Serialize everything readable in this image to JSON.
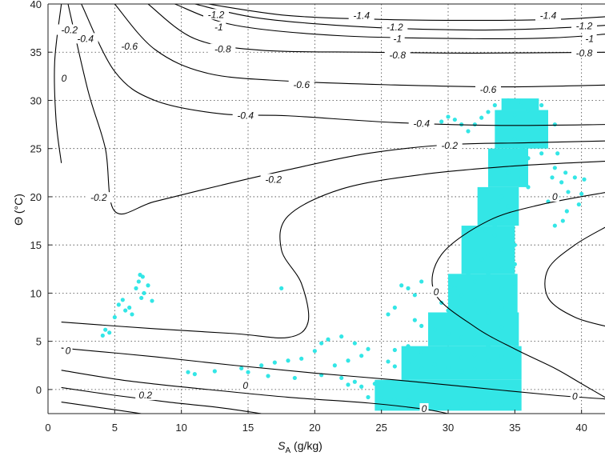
{
  "chart_data": {
    "type": "scatter",
    "title": "",
    "xlabel": "S",
    "xlabel_sub": "A",
    "xlabel_unit": " (g/kg)",
    "ylabel": "Θ (°C)",
    "xlim": [
      0,
      42
    ],
    "ylim": [
      -2.5,
      40
    ],
    "xticks": [
      0,
      5,
      10,
      15,
      20,
      25,
      30,
      35,
      40
    ],
    "yticks": [
      0,
      5,
      10,
      15,
      20,
      25,
      30,
      35,
      40
    ],
    "xtick_labels": [
      "0",
      "5",
      "10",
      "15",
      "20",
      "25",
      "30",
      "35",
      "40"
    ],
    "ytick_labels": [
      "0",
      "5",
      "10",
      "15",
      "20",
      "25",
      "30",
      "35",
      "40"
    ],
    "grid": true,
    "grid_style": "dotted",
    "scatter_color": "#33e6e6",
    "contour_color": "#000000",
    "contour_lines": [
      {
        "level": -1.4,
        "points": [
          [
            12,
            40.0
          ],
          [
            18,
            38.8
          ],
          [
            25,
            38.4
          ],
          [
            32,
            38.3
          ],
          [
            38,
            38.4
          ],
          [
            42,
            38.7
          ]
        ]
      },
      {
        "level": -1.2,
        "points": [
          [
            11,
            40.0
          ],
          [
            16,
            38.5
          ],
          [
            24,
            37.6
          ],
          [
            32,
            37.3
          ],
          [
            38,
            37.5
          ],
          [
            42,
            37.8
          ]
        ]
      },
      {
        "level": -1,
        "points": [
          [
            9.5,
            40.0
          ],
          [
            14,
            37.8
          ],
          [
            22,
            36.7
          ],
          [
            32,
            36.4
          ],
          [
            38,
            36.5
          ],
          [
            42,
            36.9
          ]
        ]
      },
      {
        "level": -0.8,
        "points": [
          [
            7.5,
            40.0
          ],
          [
            11,
            36.4
          ],
          [
            16,
            35.2
          ],
          [
            24,
            35.0
          ],
          [
            32,
            34.9
          ],
          [
            42,
            35.0
          ]
        ]
      },
      {
        "level": -0.6,
        "points": [
          [
            5,
            40.0
          ],
          [
            8,
            35.3
          ],
          [
            12,
            32.8
          ],
          [
            18,
            32.0
          ],
          [
            26,
            31.6
          ],
          [
            34,
            31.4
          ],
          [
            42,
            31.6
          ]
        ]
      },
      {
        "level": -0.4,
        "points": [
          [
            2.5,
            40.0
          ],
          [
            5,
            33.0
          ],
          [
            8,
            30.0
          ],
          [
            13,
            28.6
          ],
          [
            18,
            28.4
          ],
          [
            26,
            27.7
          ],
          [
            34,
            27.4
          ],
          [
            42,
            27.5
          ]
        ]
      },
      {
        "level": -0.2,
        "points": [
          [
            1.5,
            40.0
          ],
          [
            3,
            31.0
          ],
          [
            4.3,
            25.0
          ],
          [
            5,
            18.5
          ],
          [
            8,
            19.5
          ],
          [
            13,
            21.2
          ],
          [
            18,
            22.8
          ],
          [
            24,
            24.5
          ],
          [
            30,
            25.4
          ],
          [
            36,
            25.6
          ],
          [
            42,
            25.8
          ]
        ]
      },
      {
        "level": 0,
        "points": [
          [
            1,
            40.0
          ],
          [
            0.5,
            34.0
          ],
          [
            0.6,
            28.0
          ],
          [
            1,
            23.5
          ]
        ]
      },
      {
        "level": 0,
        "points": [
          [
            1,
            7.0
          ],
          [
            8,
            6.3
          ],
          [
            14,
            5.8
          ],
          [
            18,
            5.4
          ],
          [
            19.5,
            7.0
          ],
          [
            19,
            11.0
          ],
          [
            17.5,
            14.5
          ],
          [
            18,
            18.0
          ],
          [
            22,
            20.8
          ],
          [
            28,
            22.3
          ],
          [
            35,
            23.2
          ],
          [
            42,
            23.7
          ]
        ]
      },
      {
        "level": 0,
        "points": [
          [
            42,
            20.5
          ],
          [
            37,
            19.2
          ],
          [
            33,
            17.5
          ],
          [
            29.5,
            14.0
          ],
          [
            29,
            10.0
          ],
          [
            32,
            6.5
          ],
          [
            35,
            4.2
          ],
          [
            38,
            2.2
          ],
          [
            40,
            0.6
          ],
          [
            42,
            -1.0
          ]
        ]
      },
      {
        "level": 0,
        "points": [
          [
            42,
            17.0
          ],
          [
            39.5,
            15.0
          ],
          [
            37.5,
            12.5
          ],
          [
            37.5,
            9.5
          ],
          [
            39.5,
            7.5
          ],
          [
            42,
            6.5
          ]
        ]
      },
      {
        "level": 0,
        "points": [
          [
            1,
            4.3
          ],
          [
            8,
            3.4
          ],
          [
            14,
            2.5
          ],
          [
            20,
            1.7
          ],
          [
            26,
            1.0
          ],
          [
            32,
            0.2
          ],
          [
            38,
            -0.6
          ],
          [
            42,
            -1.0
          ]
        ]
      },
      {
        "level": 0.2,
        "points": [
          [
            1,
            2.0
          ],
          [
            6,
            0.9
          ],
          [
            12,
            0.0
          ],
          [
            18,
            -0.8
          ],
          [
            24,
            -1.4
          ],
          [
            28,
            -2.0
          ],
          [
            30,
            -2.5
          ]
        ]
      },
      {
        "level": 0.4,
        "points": [
          [
            1,
            0.2
          ],
          [
            5,
            -0.6
          ],
          [
            9,
            -1.3
          ],
          [
            13,
            -1.9
          ],
          [
            16,
            -2.5
          ]
        ]
      },
      {
        "level": 0.6,
        "points": [
          [
            1,
            -1.3
          ],
          [
            4,
            -1.9
          ],
          [
            7,
            -2.5
          ]
        ]
      }
    ],
    "contour_labels": [
      {
        "text": "-1.4",
        "x": 23.5,
        "y": 38.8
      },
      {
        "text": "-1.4",
        "x": 37.5,
        "y": 38.8
      },
      {
        "text": "-1.2",
        "x": 12.6,
        "y": 38.9
      },
      {
        "text": "-1.2",
        "x": 26.0,
        "y": 37.6
      },
      {
        "text": "-1.2",
        "x": 40.2,
        "y": 37.7
      },
      {
        "text": "-1",
        "x": 12.8,
        "y": 37.6
      },
      {
        "text": "-1",
        "x": 26.2,
        "y": 36.4
      },
      {
        "text": "-1",
        "x": 40.6,
        "y": 36.4
      },
      {
        "text": "-0.8",
        "x": 13.1,
        "y": 35.3
      },
      {
        "text": "-0.8",
        "x": 26.2,
        "y": 34.7
      },
      {
        "text": "-0.8",
        "x": 40.2,
        "y": 34.9
      },
      {
        "text": "-0.6",
        "x": 6.1,
        "y": 35.6
      },
      {
        "text": "-0.6",
        "x": 19.0,
        "y": 31.6
      },
      {
        "text": "-0.6",
        "x": 33.0,
        "y": 31.1
      },
      {
        "text": "-0.4",
        "x": 2.8,
        "y": 36.4
      },
      {
        "text": "-0.4",
        "x": 14.8,
        "y": 28.4
      },
      {
        "text": "-0.4",
        "x": 28.0,
        "y": 27.6
      },
      {
        "text": "-0.2",
        "x": 1.6,
        "y": 37.3
      },
      {
        "text": "-0.2",
        "x": 3.8,
        "y": 19.9
      },
      {
        "text": "-0.2",
        "x": 16.9,
        "y": 21.8
      },
      {
        "text": "-0.2",
        "x": 30.1,
        "y": 25.3
      },
      {
        "text": "0",
        "x": 1.2,
        "y": 32.3
      },
      {
        "text": "0",
        "x": 1.5,
        "y": 4.0
      },
      {
        "text": "0",
        "x": 14.8,
        "y": 0.4
      },
      {
        "text": "0",
        "x": 29.1,
        "y": 10.1
      },
      {
        "text": "0",
        "x": 38.0,
        "y": 20.0
      },
      {
        "text": "0",
        "x": 39.5,
        "y": -0.7
      },
      {
        "text": "0",
        "x": 28.2,
        "y": -2.0
      },
      {
        "text": "0.2",
        "x": 7.3,
        "y": -0.6
      }
    ],
    "scatter_points": [
      [
        33,
        -1.5
      ],
      [
        34,
        -1.6
      ],
      [
        35,
        -1.2
      ],
      [
        32,
        -1.4
      ],
      [
        31,
        -1.7
      ],
      [
        30,
        -1.8
      ],
      [
        29,
        -1.6
      ],
      [
        28,
        -1.5
      ],
      [
        27,
        -1.2
      ],
      [
        26,
        -1.0
      ],
      [
        25,
        -0.9
      ],
      [
        24,
        -0.8
      ],
      [
        33,
        0
      ],
      [
        34,
        0.5
      ],
      [
        35,
        0.2
      ],
      [
        32,
        0.3
      ],
      [
        31,
        0.1
      ],
      [
        30,
        0.2
      ],
      [
        29,
        0.4
      ],
      [
        28,
        0.6
      ],
      [
        27,
        0.8
      ],
      [
        26,
        0.5
      ],
      [
        25,
        0.2
      ],
      [
        24.5,
        0.6
      ],
      [
        23.5,
        0.3
      ],
      [
        22.5,
        0.5
      ],
      [
        33,
        1.5
      ],
      [
        34,
        2
      ],
      [
        35,
        1.8
      ],
      [
        32,
        2.1
      ],
      [
        31,
        1.9
      ],
      [
        30,
        2.3
      ],
      [
        29,
        2.6
      ],
      [
        28,
        2.2
      ],
      [
        27,
        2.8
      ],
      [
        26,
        2.4
      ],
      [
        25.5,
        2.9
      ],
      [
        33,
        3
      ],
      [
        34,
        3.5
      ],
      [
        35,
        3.2
      ],
      [
        32,
        3.6
      ],
      [
        31,
        3.3
      ],
      [
        30,
        3.8
      ],
      [
        29,
        4.2
      ],
      [
        28,
        3.9
      ],
      [
        27,
        4.5
      ],
      [
        26,
        4.1
      ],
      [
        33,
        4.5
      ],
      [
        34,
        5
      ],
      [
        35,
        4.8
      ],
      [
        32,
        5.1
      ],
      [
        31,
        5.4
      ],
      [
        30,
        5.8
      ],
      [
        29,
        6.2
      ],
      [
        28,
        6.6
      ],
      [
        27.5,
        7.2
      ],
      [
        33,
        6
      ],
      [
        34,
        6.5
      ],
      [
        35,
        6.8
      ],
      [
        32,
        7
      ],
      [
        31,
        7.5
      ],
      [
        30,
        8.2
      ],
      [
        29.5,
        9
      ],
      [
        33,
        8
      ],
      [
        34,
        8.5
      ],
      [
        35,
        9
      ],
      [
        32,
        9.2
      ],
      [
        31,
        9.8
      ],
      [
        30.5,
        10.5
      ],
      [
        33,
        10
      ],
      [
        34,
        10.5
      ],
      [
        35,
        11
      ],
      [
        32,
        11.2
      ],
      [
        31.5,
        12
      ],
      [
        33,
        12
      ],
      [
        34,
        12.5
      ],
      [
        35,
        13
      ],
      [
        32.5,
        13.5
      ],
      [
        32,
        14.2
      ],
      [
        33,
        14
      ],
      [
        34,
        14.5
      ],
      [
        35,
        15
      ],
      [
        33.5,
        16
      ],
      [
        32.8,
        16.5
      ],
      [
        33.5,
        17
      ],
      [
        34,
        17.5
      ],
      [
        35,
        18
      ],
      [
        34.5,
        19
      ],
      [
        33.8,
        19.5
      ],
      [
        34,
        20
      ],
      [
        35,
        20.5
      ],
      [
        36,
        21
      ],
      [
        35.5,
        22
      ],
      [
        34.5,
        22.5
      ],
      [
        34,
        23
      ],
      [
        35,
        23.5
      ],
      [
        36,
        24
      ],
      [
        37,
        24.5
      ],
      [
        35.5,
        25
      ],
      [
        34,
        25.5
      ],
      [
        35,
        26
      ],
      [
        36,
        26.5
      ],
      [
        37,
        27
      ],
      [
        38,
        27.5
      ],
      [
        35.5,
        27
      ],
      [
        34,
        28
      ],
      [
        35,
        28.5
      ],
      [
        36,
        29
      ],
      [
        37,
        29.5
      ],
      [
        35.5,
        29.8
      ],
      [
        34.5,
        30
      ],
      [
        33.5,
        29.5
      ],
      [
        33,
        28.8
      ],
      [
        32.5,
        28.2
      ],
      [
        32,
        27.5
      ],
      [
        31.5,
        26.8
      ],
      [
        31,
        27.5
      ],
      [
        30.5,
        28
      ],
      [
        30,
        28.3
      ],
      [
        29.5,
        27.8
      ],
      [
        38.2,
        24.5
      ],
      [
        38,
        23
      ],
      [
        37.8,
        22
      ],
      [
        38.5,
        21.5
      ],
      [
        39,
        20.5
      ],
      [
        38.2,
        20
      ],
      [
        37.5,
        19.5
      ],
      [
        38.8,
        22.5
      ],
      [
        39.5,
        22
      ],
      [
        40.2,
        21.8
      ],
      [
        40,
        20.3
      ],
      [
        39.8,
        19.2
      ],
      [
        38.9,
        18.5
      ],
      [
        38.6,
        17.5
      ],
      [
        38,
        17
      ],
      [
        4.1,
        5.6
      ],
      [
        4.3,
        6.2
      ],
      [
        4.6,
        5.9
      ],
      [
        5,
        7.5
      ],
      [
        5.3,
        8.8
      ],
      [
        5.6,
        9.3
      ],
      [
        5.8,
        8.2
      ],
      [
        6.1,
        8.5
      ],
      [
        6.3,
        7.8
      ],
      [
        6.6,
        10.5
      ],
      [
        6.8,
        11.2
      ],
      [
        7,
        9.5
      ],
      [
        7.2,
        10
      ],
      [
        7.5,
        10.8
      ],
      [
        7.8,
        9.2
      ],
      [
        7.1,
        11.7
      ],
      [
        6.9,
        11.9
      ],
      [
        17.5,
        10.5
      ],
      [
        10.5,
        1.8
      ],
      [
        11,
        1.6
      ],
      [
        12.5,
        1.9
      ],
      [
        14.5,
        2.2
      ],
      [
        16,
        2.5
      ],
      [
        17,
        2.8
      ],
      [
        18,
        3
      ],
      [
        19,
        3.2
      ],
      [
        20,
        4
      ],
      [
        20.5,
        4.8
      ],
      [
        21,
        5.2
      ],
      [
        22,
        5.5
      ],
      [
        23,
        4.8
      ],
      [
        24,
        4.2
      ],
      [
        23.5,
        3.5
      ],
      [
        22.5,
        3
      ],
      [
        21.5,
        2.5
      ],
      [
        15,
        1.8
      ],
      [
        16.5,
        1.4
      ],
      [
        18.5,
        1.2
      ],
      [
        20.5,
        1.5
      ],
      [
        22,
        1.2
      ],
      [
        23,
        0.8
      ],
      [
        27,
        10.5
      ],
      [
        27.5,
        9.8
      ],
      [
        28,
        11.2
      ],
      [
        26.5,
        10.8
      ],
      [
        26,
        8.5
      ],
      [
        25.5,
        7.8
      ]
    ],
    "scatter_blobs": [
      {
        "x0": 24.5,
        "x1": 35.5,
        "y0": -2.2,
        "y1": 1.0
      },
      {
        "x0": 26.5,
        "x1": 35.5,
        "y0": 1.0,
        "y1": 4.5
      },
      {
        "x0": 28.5,
        "x1": 35.3,
        "y0": 4.5,
        "y1": 8.0
      },
      {
        "x0": 30.0,
        "x1": 35.2,
        "y0": 8.0,
        "y1": 12.0
      },
      {
        "x0": 31.0,
        "x1": 35.0,
        "y0": 12.0,
        "y1": 17.0
      },
      {
        "x0": 32.2,
        "x1": 35.3,
        "y0": 17.0,
        "y1": 21.0
      },
      {
        "x0": 33.0,
        "x1": 36.0,
        "y0": 21.0,
        "y1": 25.0
      },
      {
        "x0": 33.5,
        "x1": 37.5,
        "y0": 25.0,
        "y1": 29.0
      },
      {
        "x0": 34.0,
        "x1": 36.8,
        "y0": 29.0,
        "y1": 30.2
      }
    ]
  }
}
